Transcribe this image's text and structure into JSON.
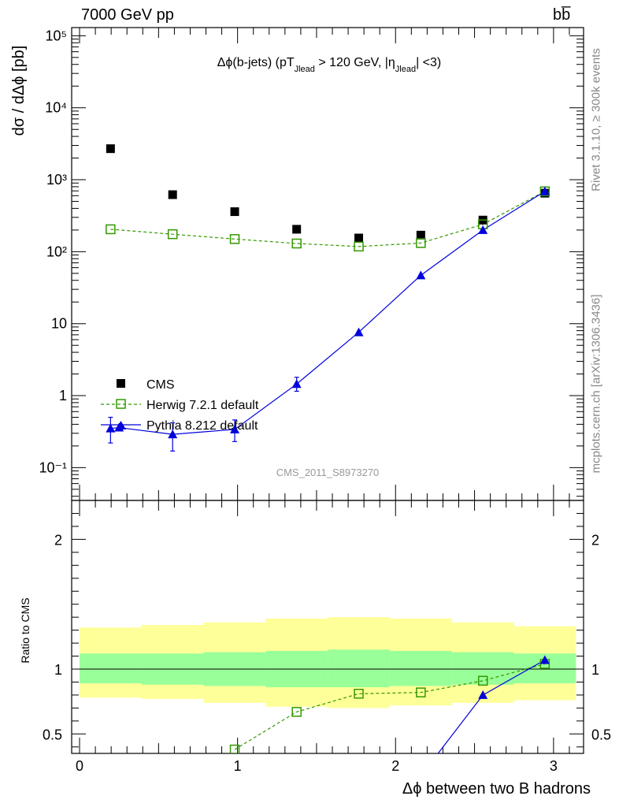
{
  "header": {
    "energy_label": "7000 GeV pp",
    "process_label": "bb̅"
  },
  "side": {
    "rivet_label": "Rivet 3.1.10, ≥ 300k events",
    "mcplots_label": "mcplots.cern.ch [arXiv:1306.3436]"
  },
  "analysis_label": "CMS_2011_S8973270",
  "colors": {
    "cms": "#000000",
    "herwig": "#339900",
    "pythia": "#0000dd",
    "band_inner": "#99ff99",
    "band_outer": "#ffff99"
  },
  "chart_data": [
    {
      "type": "scatter",
      "panel": "main",
      "title": "Δϕ(b-jets) (pT_Jlead > 120 GeV, |η_Jlead| <3)",
      "title_parts": {
        "a": "Δϕ(b-jets) (pT",
        "a_sub": "Jlead",
        "b": " >  120 GeV, |η",
        "b_sub": "Jlead",
        "c": "| <3)"
      },
      "ylabel": "dσ / dΔϕ [pb]",
      "yscale": "log",
      "ylim": [
        0.035,
        130000
      ],
      "xlim": [
        -0.05,
        3.19
      ],
      "y_tick_labels": [
        "10⁻¹",
        "1",
        "10",
        "10²",
        "10³",
        "10⁴",
        "10⁵"
      ],
      "y_tick_values": [
        0.1,
        1,
        10,
        100,
        1000,
        10000,
        100000
      ],
      "legend": {
        "placement": "bottom-left",
        "entries": [
          "CMS",
          "Herwig 7.2.1 default",
          "Pythia 8.212 default"
        ]
      },
      "series": [
        {
          "name": "CMS",
          "x": [
            0.196,
            0.589,
            0.982,
            1.374,
            1.767,
            2.16,
            2.553,
            2.945
          ],
          "y": [
            2700,
            620,
            360,
            205,
            155,
            170,
            275,
            650
          ]
        },
        {
          "name": "Herwig 7.2.1 default",
          "x": [
            0.196,
            0.589,
            0.982,
            1.374,
            1.767,
            2.16,
            2.553,
            2.945
          ],
          "y": [
            205,
            175,
            150,
            130,
            118,
            132,
            240,
            690
          ]
        },
        {
          "name": "Pythia 8.212 default",
          "x": [
            0.196,
            0.25,
            0.589,
            0.982,
            1.374,
            1.767,
            2.16,
            2.553,
            2.945
          ],
          "y": [
            0.35,
            0.36,
            0.29,
            0.34,
            1.45,
            7.6,
            47,
            200,
            690
          ],
          "yerr_low": [
            0.13,
            0,
            0.12,
            0.11,
            0.3,
            0,
            0,
            0,
            0
          ],
          "yerr_high": [
            0.15,
            0,
            0.13,
            0.12,
            0.35,
            0,
            0,
            0,
            0
          ]
        }
      ]
    },
    {
      "type": "line",
      "panel": "ratio",
      "ylabel": "Ratio to CMS",
      "xlabel": "Δϕ between two B hadrons",
      "ylim": [
        0.35,
        2.3
      ],
      "xlim": [
        -0.05,
        3.19
      ],
      "x_tick_labels": [
        "0",
        "1",
        "2",
        "3"
      ],
      "x_tick_values": [
        0,
        1,
        2,
        3
      ],
      "y_tick_labels": [
        "0.5",
        "1",
        "2"
      ],
      "y_tick_values": [
        0.5,
        1,
        2
      ],
      "band_edges": [
        0,
        0.393,
        0.785,
        1.178,
        1.571,
        1.963,
        2.356,
        2.749,
        3.142
      ],
      "band_inner": {
        "low": [
          0.89,
          0.88,
          0.87,
          0.86,
          0.86,
          0.87,
          0.88,
          0.89
        ],
        "high": [
          1.12,
          1.12,
          1.13,
          1.14,
          1.15,
          1.14,
          1.13,
          1.12
        ]
      },
      "band_outer": {
        "low": [
          0.78,
          0.77,
          0.74,
          0.71,
          0.7,
          0.72,
          0.74,
          0.76
        ],
        "high": [
          1.32,
          1.34,
          1.36,
          1.39,
          1.4,
          1.39,
          1.36,
          1.33
        ]
      },
      "reference_line": 1,
      "series": [
        {
          "name": "Herwig 7.2.1 default",
          "x": [
            0.982,
            1.374,
            1.767,
            2.16,
            2.553,
            2.945
          ],
          "y": [
            0.38,
            0.67,
            0.81,
            0.82,
            0.91,
            1.04
          ]
        },
        {
          "name": "Pythia 8.212 default",
          "x": [
            2.225,
            2.553,
            2.945
          ],
          "y": [
            0.28,
            0.8,
            1.07
          ]
        }
      ]
    }
  ]
}
